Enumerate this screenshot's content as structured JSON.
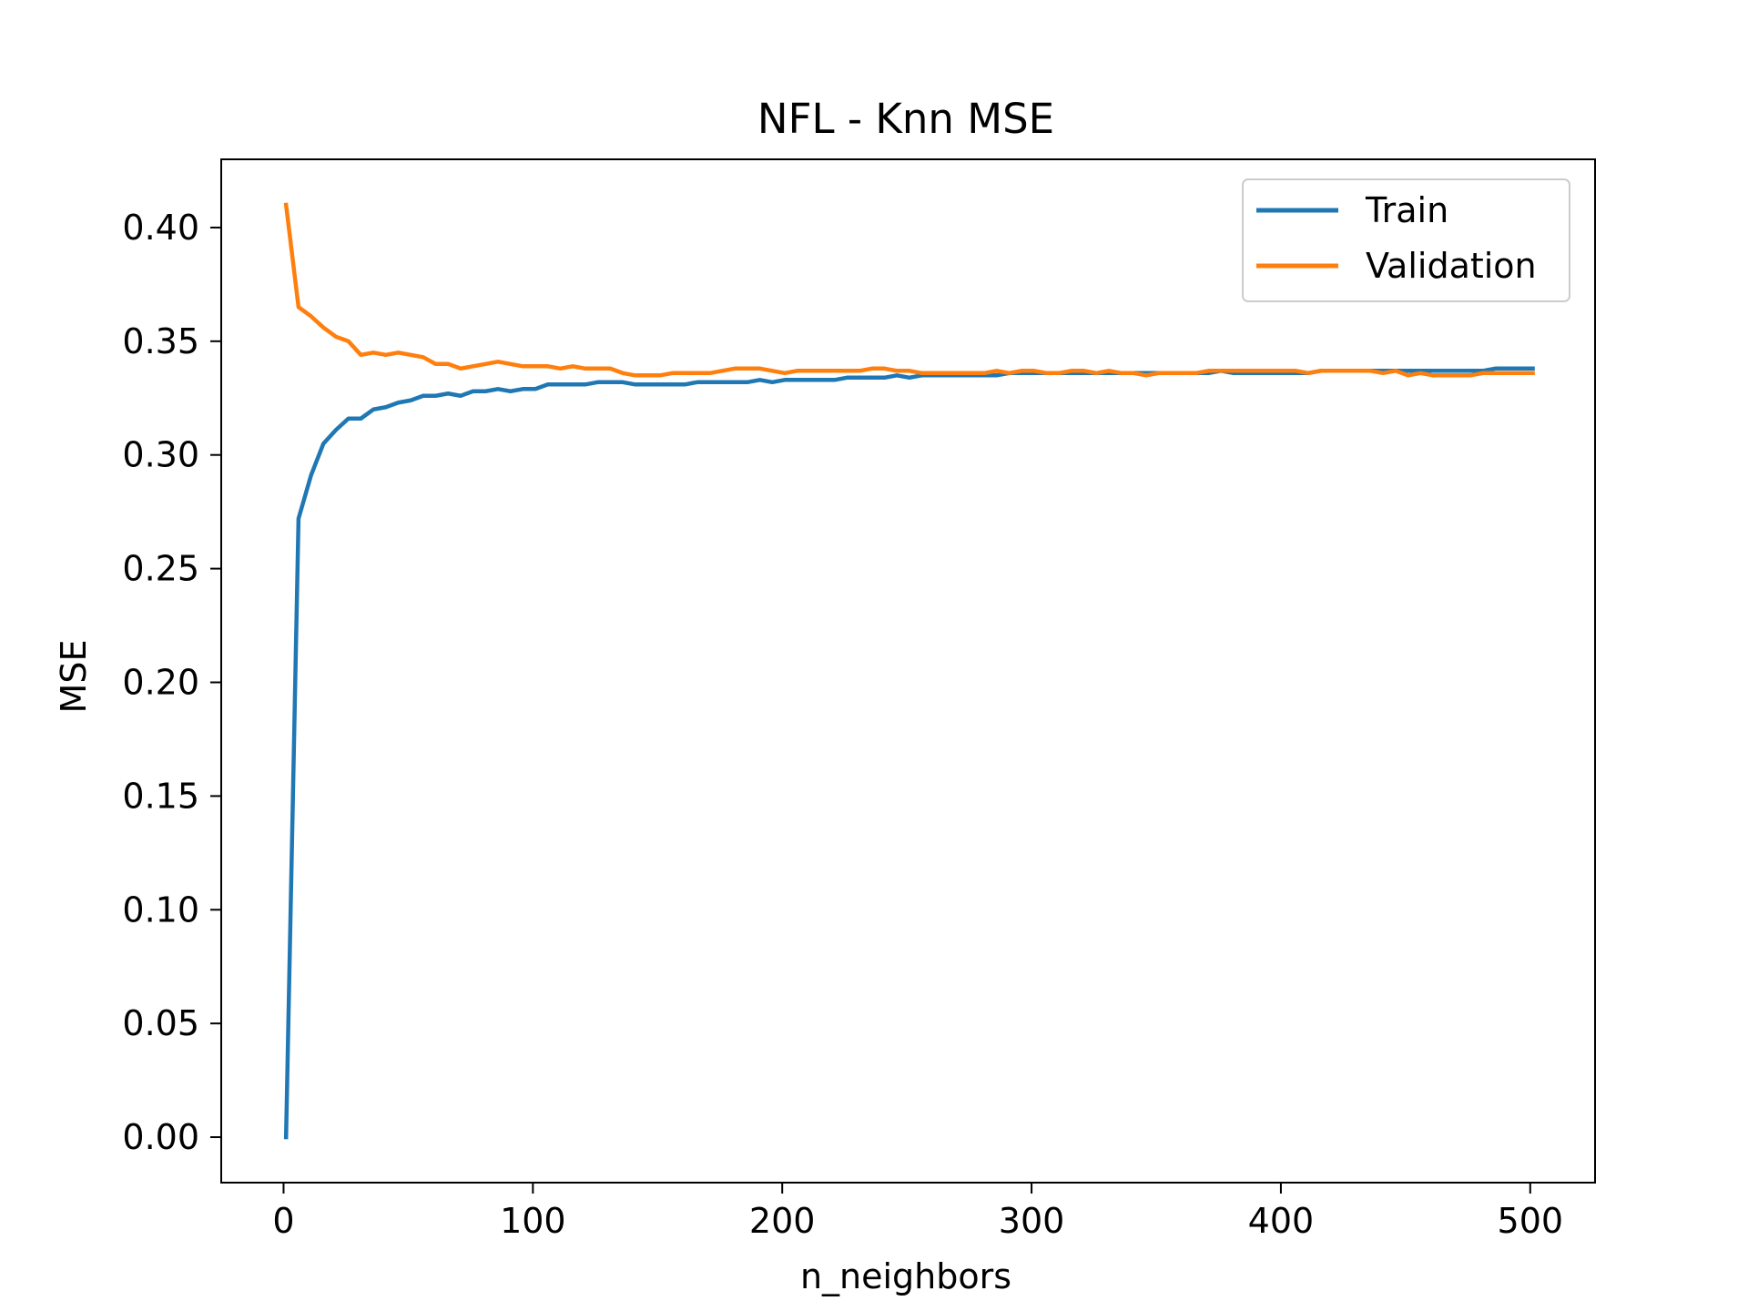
{
  "chart_data": {
    "type": "line",
    "title": "NFL - Knn MSE",
    "xlabel": "n_neighbors",
    "ylabel": "MSE",
    "xlim": [
      -25,
      526
    ],
    "ylim": [
      -0.02,
      0.43
    ],
    "x_ticks": [
      0,
      100,
      200,
      300,
      400,
      500
    ],
    "x_tick_labels": [
      "0",
      "100",
      "200",
      "300",
      "400",
      "500"
    ],
    "y_ticks": [
      0.0,
      0.05,
      0.1,
      0.15,
      0.2,
      0.25,
      0.3,
      0.35,
      0.4
    ],
    "y_tick_labels": [
      "0.00",
      "0.05",
      "0.10",
      "0.15",
      "0.20",
      "0.25",
      "0.30",
      "0.35",
      "0.40"
    ],
    "grid": false,
    "legend": {
      "position": "top-right"
    },
    "x": [
      1,
      6,
      11,
      16,
      21,
      26,
      31,
      36,
      41,
      46,
      51,
      56,
      61,
      66,
      71,
      76,
      81,
      86,
      91,
      96,
      101,
      106,
      111,
      116,
      121,
      126,
      131,
      136,
      141,
      146,
      151,
      156,
      161,
      166,
      171,
      176,
      181,
      186,
      191,
      196,
      201,
      206,
      211,
      216,
      221,
      226,
      231,
      236,
      241,
      246,
      251,
      256,
      261,
      266,
      271,
      276,
      281,
      286,
      291,
      296,
      301,
      306,
      311,
      316,
      321,
      326,
      331,
      336,
      341,
      346,
      351,
      356,
      361,
      366,
      371,
      376,
      381,
      386,
      391,
      396,
      401,
      406,
      411,
      416,
      421,
      426,
      431,
      436,
      441,
      446,
      451,
      456,
      461,
      466,
      471,
      476,
      481,
      486,
      491,
      496,
      501
    ],
    "series": [
      {
        "name": "Train",
        "color": "#1f77b4",
        "values": [
          0.0,
          0.272,
          0.291,
          0.305,
          0.311,
          0.316,
          0.316,
          0.32,
          0.321,
          0.323,
          0.324,
          0.326,
          0.326,
          0.327,
          0.326,
          0.328,
          0.328,
          0.329,
          0.328,
          0.329,
          0.329,
          0.331,
          0.331,
          0.331,
          0.331,
          0.332,
          0.332,
          0.332,
          0.331,
          0.331,
          0.331,
          0.331,
          0.331,
          0.332,
          0.332,
          0.332,
          0.332,
          0.332,
          0.333,
          0.332,
          0.333,
          0.333,
          0.333,
          0.333,
          0.333,
          0.334,
          0.334,
          0.334,
          0.334,
          0.335,
          0.334,
          0.335,
          0.335,
          0.335,
          0.335,
          0.335,
          0.335,
          0.335,
          0.336,
          0.336,
          0.336,
          0.336,
          0.336,
          0.336,
          0.336,
          0.336,
          0.336,
          0.336,
          0.336,
          0.336,
          0.336,
          0.336,
          0.336,
          0.336,
          0.336,
          0.337,
          0.336,
          0.336,
          0.336,
          0.336,
          0.336,
          0.336,
          0.336,
          0.337,
          0.337,
          0.337,
          0.337,
          0.337,
          0.337,
          0.337,
          0.337,
          0.337,
          0.337,
          0.337,
          0.337,
          0.337,
          0.337,
          0.338,
          0.338,
          0.338,
          0.338
        ]
      },
      {
        "name": "Validation",
        "color": "#ff7f0e",
        "values": [
          0.41,
          0.365,
          0.361,
          0.356,
          0.352,
          0.35,
          0.344,
          0.345,
          0.344,
          0.345,
          0.344,
          0.343,
          0.34,
          0.34,
          0.338,
          0.339,
          0.34,
          0.341,
          0.34,
          0.339,
          0.339,
          0.339,
          0.338,
          0.339,
          0.338,
          0.338,
          0.338,
          0.336,
          0.335,
          0.335,
          0.335,
          0.336,
          0.336,
          0.336,
          0.336,
          0.337,
          0.338,
          0.338,
          0.338,
          0.337,
          0.336,
          0.337,
          0.337,
          0.337,
          0.337,
          0.337,
          0.337,
          0.338,
          0.338,
          0.337,
          0.337,
          0.336,
          0.336,
          0.336,
          0.336,
          0.336,
          0.336,
          0.337,
          0.336,
          0.337,
          0.337,
          0.336,
          0.336,
          0.337,
          0.337,
          0.336,
          0.337,
          0.336,
          0.336,
          0.335,
          0.336,
          0.336,
          0.336,
          0.336,
          0.337,
          0.337,
          0.337,
          0.337,
          0.337,
          0.337,
          0.337,
          0.337,
          0.336,
          0.337,
          0.337,
          0.337,
          0.337,
          0.337,
          0.336,
          0.337,
          0.335,
          0.336,
          0.335,
          0.335,
          0.335,
          0.335,
          0.336,
          0.336,
          0.336,
          0.336,
          0.336
        ]
      }
    ]
  }
}
